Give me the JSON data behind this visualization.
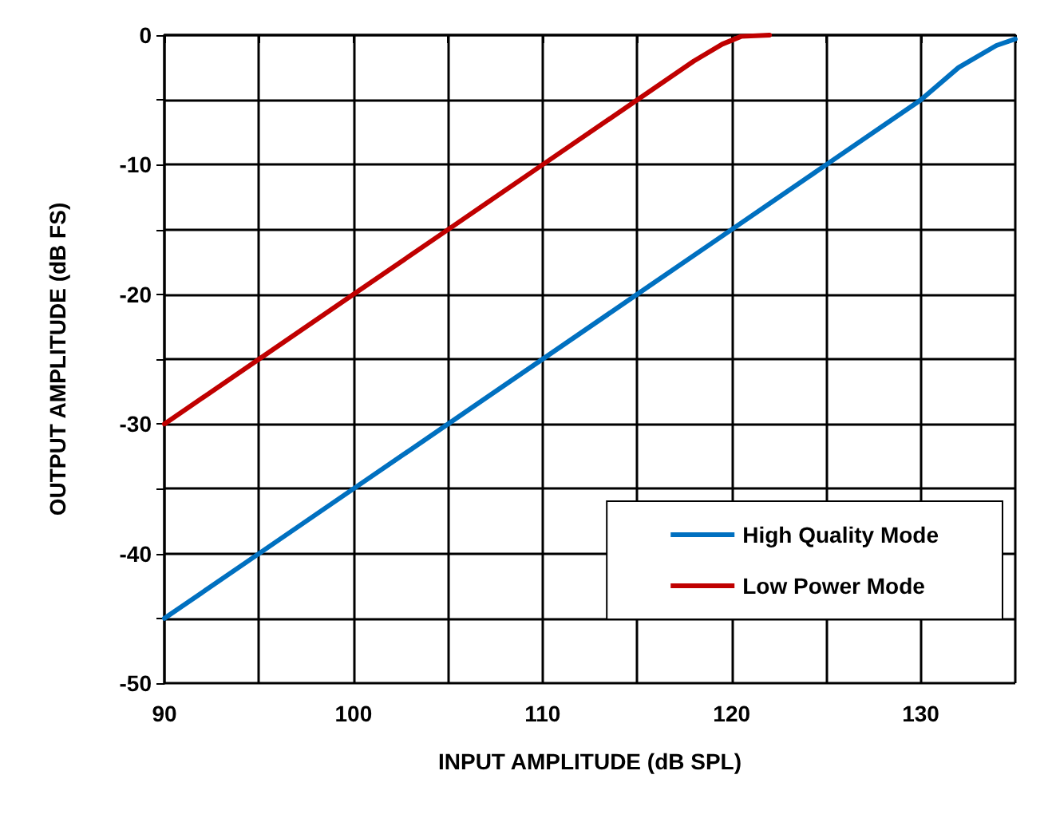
{
  "chart_data": {
    "type": "line",
    "xlabel": "INPUT AMPLITUDE (dB SPL)",
    "ylabel": "OUTPUT AMPLITUDE (dB FS)",
    "series": [
      {
        "name": "High Quality Mode",
        "color": "#0070c0",
        "x": [
          90,
          95,
          100,
          105,
          110,
          115,
          120,
          125,
          130,
          132,
          134,
          135
        ],
        "values": [
          -45,
          -40,
          -35,
          -30,
          -25,
          -20,
          -15,
          -10,
          -5,
          -2.5,
          -0.8,
          -0.3
        ]
      },
      {
        "name": "Low Power Mode",
        "color": "#c00000",
        "x": [
          90,
          95,
          100,
          105,
          110,
          115,
          118,
          119.5,
          120.5,
          122
        ],
        "values": [
          -30,
          -25,
          -20,
          -15,
          -10,
          -5,
          -2,
          -0.7,
          -0.1,
          0
        ]
      }
    ],
    "xlim": [
      90,
      135
    ],
    "xticks": [
      90,
      {
        "value": 95,
        "label": null
      },
      100,
      {
        "value": 105,
        "label": null
      },
      110,
      {
        "value": 115,
        "label": null
      },
      120,
      {
        "value": 125,
        "label": null
      },
      130,
      {
        "value": 135,
        "label": null
      }
    ],
    "ylim": [
      -50,
      0
    ],
    "yticks": [
      -50,
      {
        "value": -45,
        "label": null
      },
      -40,
      {
        "value": -35,
        "label": null
      },
      -30,
      {
        "value": -25,
        "label": null
      },
      -20,
      {
        "value": -15,
        "label": null
      },
      -10,
      {
        "value": -5,
        "label": null
      },
      0
    ],
    "grid": true,
    "legend": "bottom right",
    "marker": "none",
    "line_style": "solid"
  }
}
